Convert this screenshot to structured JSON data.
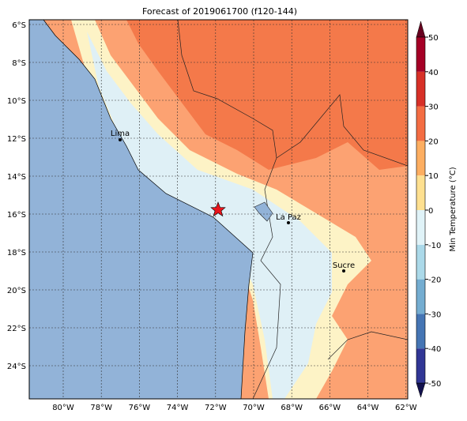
{
  "title": "Forecast of 2019061700 (f120-144)",
  "lon_ticks": [
    {
      "value": -80,
      "label": "80°W"
    },
    {
      "value": -78,
      "label": "78°W"
    },
    {
      "value": -76,
      "label": "76°W"
    },
    {
      "value": -74,
      "label": "74°W"
    },
    {
      "value": -72,
      "label": "72°W"
    },
    {
      "value": -70,
      "label": "70°W"
    },
    {
      "value": -68,
      "label": "68°W"
    },
    {
      "value": -66,
      "label": "66°W"
    },
    {
      "value": -64,
      "label": "64°W"
    },
    {
      "value": -62,
      "label": "62°W"
    }
  ],
  "lat_ticks": [
    {
      "value": -6,
      "label": "6°S"
    },
    {
      "value": -8,
      "label": "8°S"
    },
    {
      "value": -10,
      "label": "10°S"
    },
    {
      "value": -12,
      "label": "12°S"
    },
    {
      "value": -14,
      "label": "14°S"
    },
    {
      "value": -16,
      "label": "16°S"
    },
    {
      "value": -18,
      "label": "18°S"
    },
    {
      "value": -20,
      "label": "20°S"
    },
    {
      "value": -22,
      "label": "22°S"
    },
    {
      "value": -24,
      "label": "24°S"
    }
  ],
  "cities": [
    "Lima",
    "La Paz",
    "Sucre"
  ],
  "colorbar": {
    "label": "Min Temperature (°C)",
    "lim": [
      -50,
      50
    ],
    "ticks": [
      -50,
      -40,
      -30,
      -20,
      -10,
      0,
      10,
      20,
      30,
      40,
      50
    ],
    "colors": [
      "#313695",
      "#4575b4",
      "#74add1",
      "#abd9e9",
      "#e0f3f8",
      "#fee090",
      "#fdae61",
      "#f46d43",
      "#d73027",
      "#a50026"
    ]
  }
}
